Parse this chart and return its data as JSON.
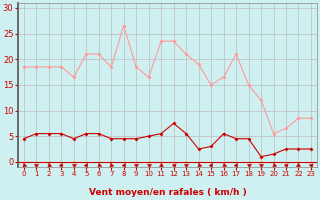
{
  "x": [
    0,
    1,
    2,
    3,
    4,
    5,
    6,
    7,
    8,
    9,
    10,
    11,
    12,
    13,
    14,
    15,
    16,
    17,
    18,
    19,
    20,
    21,
    22,
    23
  ],
  "rafales": [
    18.5,
    18.5,
    18.5,
    18.5,
    16.5,
    21.0,
    21.0,
    18.5,
    26.5,
    18.5,
    16.5,
    23.5,
    23.5,
    21.0,
    19.0,
    15.0,
    16.5,
    21.0,
    15.0,
    12.0,
    5.5,
    6.5,
    8.5,
    8.5
  ],
  "moyen": [
    4.5,
    5.5,
    5.5,
    5.5,
    4.5,
    5.5,
    5.5,
    4.5,
    4.5,
    4.5,
    5.0,
    5.5,
    7.5,
    5.5,
    2.5,
    3.0,
    5.5,
    4.5,
    4.5,
    1.0,
    1.5,
    2.5,
    2.5,
    2.5
  ],
  "wind_angles": [
    225,
    180,
    225,
    270,
    180,
    270,
    225,
    225,
    270,
    180,
    180,
    0,
    45,
    180,
    225,
    270,
    225,
    270,
    180,
    180,
    225,
    45,
    0,
    45
  ],
  "bg_color": "#cff0f0",
  "grid_color": "#bbbbbb",
  "line_color_rafales": "#ff9999",
  "line_color_moyen": "#cc0000",
  "marker_color_rafales": "#ff9999",
  "marker_color_moyen": "#cc0000",
  "xlabel": "Vent moyen/en rafales ( km/h )",
  "xlabel_color": "#cc0000",
  "tick_color": "#cc0000",
  "yticks": [
    0,
    5,
    10,
    15,
    20,
    25,
    30
  ],
  "ylim": [
    -1,
    31
  ],
  "xlim": [
    -0.5,
    23.5
  ],
  "ylabel_right_limit": 30
}
